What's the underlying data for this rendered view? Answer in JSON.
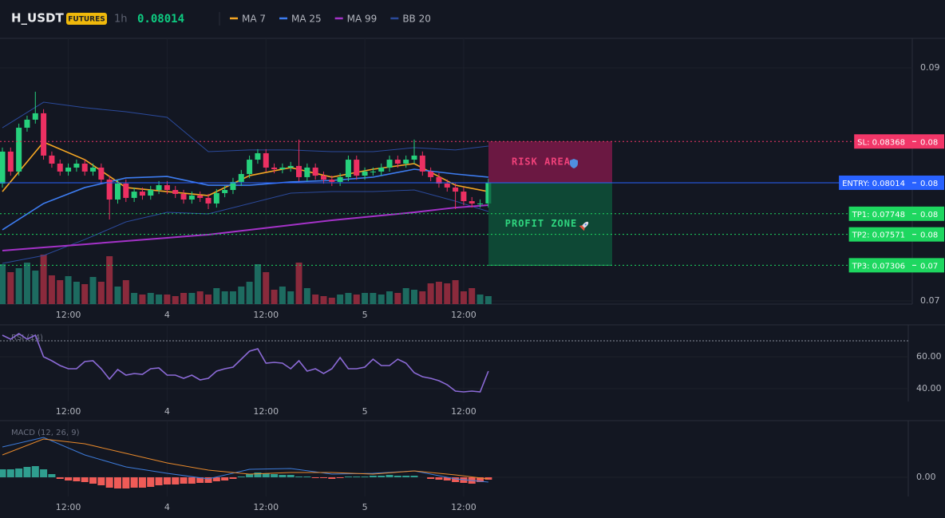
{
  "chart_data": [
    {
      "type": "candlestick",
      "title": "H_USDT",
      "badge": "FUTURES",
      "interval": "1h",
      "last_price": 0.08014,
      "last_price_color": "#0ecb81",
      "categories": [
        null,
        null,
        null,
        null,
        null,
        null,
        null,
        null,
        "12:00",
        null,
        null,
        null,
        null,
        null,
        null,
        null,
        null,
        null,
        null,
        null,
        "4",
        null,
        null,
        null,
        null,
        null,
        null,
        null,
        null,
        null,
        null,
        null,
        "12:00",
        null,
        null,
        null,
        null,
        null,
        null,
        null,
        null,
        null,
        null,
        null,
        "5",
        null,
        null,
        null,
        null,
        null,
        null,
        null,
        null,
        null,
        null,
        null,
        "12:00",
        null,
        null,
        null
      ],
      "up_color": "#26d07c",
      "down_color": "#ec3062",
      "volume_up_color": "#1d6b60",
      "volume_down_color": "#8a2a3c",
      "ohlc": [
        [
          0.08007,
          0.08316,
          0.07972,
          0.08281
        ],
        [
          0.08281,
          0.08316,
          0.08075,
          0.0811
        ],
        [
          0.0811,
          0.08521,
          0.08075,
          0.08486
        ],
        [
          0.08486,
          0.08589,
          0.08452,
          0.08555
        ],
        [
          0.08555,
          0.08795,
          0.08521,
          0.0861
        ],
        [
          0.0861,
          0.08645,
          0.08212,
          0.08247
        ],
        [
          0.08247,
          0.08282,
          0.08143,
          0.08178
        ],
        [
          0.08178,
          0.08213,
          0.08075,
          0.0811
        ],
        [
          0.0811,
          0.08179,
          0.08075,
          0.08144
        ],
        [
          0.08144,
          0.08213,
          0.08109,
          0.08178
        ],
        [
          0.08178,
          0.08213,
          0.08075,
          0.0811
        ],
        [
          0.0811,
          0.08179,
          0.08075,
          0.08144
        ],
        [
          0.08144,
          0.08179,
          0.08006,
          0.08041
        ],
        [
          0.08041,
          0.08076,
          0.07699,
          0.0787
        ],
        [
          0.0787,
          0.08042,
          0.07835,
          0.08007
        ],
        [
          0.08007,
          0.08042,
          0.07849,
          0.07884
        ],
        [
          0.07884,
          0.07973,
          0.07849,
          0.07938
        ],
        [
          0.07938,
          0.07973,
          0.07869,
          0.07904
        ],
        [
          0.07904,
          0.07987,
          0.07869,
          0.07952
        ],
        [
          0.07952,
          0.08028,
          0.07917,
          0.07993
        ],
        [
          0.07993,
          0.08028,
          0.07917,
          0.07952
        ],
        [
          0.07952,
          0.07987,
          0.07883,
          0.07918
        ],
        [
          0.07918,
          0.07953,
          0.07835,
          0.0787
        ],
        [
          0.0787,
          0.07939,
          0.07835,
          0.07904
        ],
        [
          0.07904,
          0.07939,
          0.07849,
          0.07884
        ],
        [
          0.07884,
          0.07919,
          0.07788,
          0.07836
        ],
        [
          0.07836,
          0.0796,
          0.07801,
          0.07925
        ],
        [
          0.07925,
          0.07987,
          0.0789,
          0.07952
        ],
        [
          0.07952,
          0.08056,
          0.07917,
          0.08021
        ],
        [
          0.08021,
          0.08124,
          0.07986,
          0.08089
        ],
        [
          0.08089,
          0.08247,
          0.08054,
          0.08212
        ],
        [
          0.08212,
          0.08302,
          0.08177,
          0.08267
        ],
        [
          0.08267,
          0.08302,
          0.08109,
          0.08144
        ],
        [
          0.08144,
          0.08179,
          0.08095,
          0.0813
        ],
        [
          0.0813,
          0.08179,
          0.08095,
          0.08144
        ],
        [
          0.08144,
          0.08193,
          0.08109,
          0.08158
        ],
        [
          0.08158,
          0.08384,
          0.08027,
          0.08062
        ],
        [
          0.08062,
          0.08179,
          0.08027,
          0.08144
        ],
        [
          0.08144,
          0.08179,
          0.0804,
          0.08075
        ],
        [
          0.08075,
          0.0811,
          0.08006,
          0.08041
        ],
        [
          0.08041,
          0.08076,
          0.07986,
          0.08021
        ],
        [
          0.08021,
          0.08097,
          0.07986,
          0.08062
        ],
        [
          0.08062,
          0.08247,
          0.08027,
          0.08212
        ],
        [
          0.08212,
          0.08247,
          0.0804,
          0.08075
        ],
        [
          0.08075,
          0.08145,
          0.0804,
          0.0811
        ],
        [
          0.0811,
          0.08145,
          0.08075,
          0.0811
        ],
        [
          0.0811,
          0.08179,
          0.08075,
          0.08144
        ],
        [
          0.08144,
          0.08247,
          0.08109,
          0.08212
        ],
        [
          0.08212,
          0.08247,
          0.08143,
          0.08178
        ],
        [
          0.08178,
          0.08247,
          0.08143,
          0.08212
        ],
        [
          0.08212,
          0.08384,
          0.08177,
          0.08247
        ],
        [
          0.08247,
          0.08282,
          0.08075,
          0.0811
        ],
        [
          0.0811,
          0.08145,
          0.08027,
          0.08062
        ],
        [
          0.08062,
          0.08097,
          0.07972,
          0.08007
        ],
        [
          0.08007,
          0.08042,
          0.07938,
          0.07973
        ],
        [
          0.07973,
          0.08008,
          0.07788,
          0.07938
        ],
        [
          0.07938,
          0.07973,
          0.07821,
          0.07856
        ],
        [
          0.07856,
          0.07891,
          0.07801,
          0.07836
        ],
        [
          0.07836,
          0.07871,
          0.07801,
          0.07836
        ],
        [
          0.07836,
          0.08049,
          0.07801,
          0.08014
        ]
      ],
      "volume": [
        50,
        40,
        45,
        52,
        42,
        62,
        36,
        30,
        35,
        28,
        25,
        34,
        28,
        60,
        22,
        30,
        14,
        12,
        14,
        12,
        12,
        10,
        14,
        14,
        16,
        12,
        20,
        16,
        16,
        22,
        28,
        50,
        40,
        18,
        22,
        16,
        52,
        20,
        12,
        10,
        8,
        12,
        14,
        12,
        14,
        14,
        12,
        16,
        14,
        20,
        18,
        16,
        26,
        28,
        26,
        30,
        16,
        20,
        12,
        10
      ],
      "x": [
        0,
        5,
        10,
        15,
        20,
        25,
        30,
        35,
        40,
        45,
        50,
        55,
        59
      ],
      "series": [
        {
          "name": "MA 7",
          "color": "#f5a623",
          "values": [
            0.07938,
            0.08363,
            0.08212,
            0.07973,
            0.07938,
            0.07904,
            0.08075,
            0.08144,
            0.08062,
            0.0813,
            0.08178,
            0.07993,
            0.07938
          ]
        },
        {
          "name": "MA 25",
          "color": "#3d7cf0",
          "values": [
            0.0761,
            0.07836,
            0.07973,
            0.08055,
            0.08068,
            0.07993,
            0.07993,
            0.08021,
            0.08034,
            0.08062,
            0.0813,
            0.08089,
            0.08062
          ]
        },
        {
          "name": "MA 99",
          "color": "#a432c8",
          "values": [
            0.07432,
            0.07459,
            0.07486,
            0.07514,
            0.07541,
            0.07569,
            0.0761,
            0.07651,
            0.07692,
            0.07726,
            0.0776,
            0.07801,
            0.07822
          ]
        }
      ],
      "bb": {
        "name": "BB 20",
        "color": "#2b4a9b",
        "upper": [
          0.08486,
          0.08705,
          0.08658,
          0.08623,
          0.08575,
          0.08281,
          0.08295,
          0.08295,
          0.08281,
          0.08281,
          0.08315,
          0.08295,
          0.08329
        ],
        "lower": [
          0.07322,
          0.0739,
          0.07527,
          0.07678,
          0.0776,
          0.07747,
          0.07836,
          0.07925,
          0.07938,
          0.07938,
          0.07952,
          0.07856,
          0.07767
        ]
      },
      "ylim": [
        0.06973,
        0.09253
      ],
      "yticks": [
        0.09,
        0.07
      ],
      "price_lines": [
        {
          "label": "SL: 0.08368",
          "value": 0.08368,
          "price_label": "0.08",
          "color": "#f23668",
          "style": "dotted"
        },
        {
          "label": "ENTRY: 0.08014",
          "value": 0.08014,
          "price_label": "0.08",
          "color": "#2962ff",
          "style": "solid"
        },
        {
          "label": "TP1: 0.07748",
          "value": 0.07748,
          "price_label": "0.08",
          "color": "#1ed760",
          "style": "dotted"
        },
        {
          "label": "TP2: 0.07571",
          "value": 0.07571,
          "price_label": "0.08",
          "color": "#1ed760",
          "style": "dotted"
        },
        {
          "label": "TP3: 0.07306",
          "value": 0.07306,
          "price_label": "0.07",
          "color": "#1ed760",
          "style": "dotted"
        }
      ],
      "zones": [
        {
          "label": "RISK AREA",
          "from": 0.08368,
          "to": 0.08014,
          "color": "#8a1a4e",
          "text_color": "#f0417a"
        },
        {
          "label": "PROFIT ZONE",
          "from": 0.08014,
          "to": 0.07306,
          "color": "#0d5a3c",
          "text_color": "#2fd67f"
        }
      ]
    },
    {
      "type": "line",
      "title": "RSI (14)",
      "color": "#8b6ad6",
      "values": [
        73.5,
        71,
        74.5,
        71,
        73.5,
        60,
        57.5,
        54.5,
        52.5,
        52.5,
        57,
        57.5,
        52.5,
        46,
        52,
        48.5,
        49.5,
        49,
        52.5,
        53,
        48.5,
        48.5,
        46.5,
        48.5,
        45.5,
        46.5,
        51,
        52.5,
        53.5,
        58.5,
        63.5,
        65,
        56,
        56.5,
        56,
        52.5,
        57.5,
        51,
        52.5,
        49.5,
        52.5,
        59.5,
        52.5,
        52.5,
        53.5,
        58.5,
        54.5,
        54.5,
        58.5,
        56,
        50,
        47.5,
        46.5,
        45,
        42.5,
        38.5,
        38,
        38.5,
        38,
        51
      ],
      "levels": [
        70
      ],
      "ylim": [
        32,
        79.5
      ],
      "yticks": [
        {
          "value": 60,
          "label": "60.00"
        },
        {
          "value": 40,
          "label": "40.00"
        }
      ]
    },
    {
      "type": "macd",
      "title": "MACD (12, 26, 9)",
      "up_color": "#2f9e8f",
      "down_color": "#ef5b57",
      "histogram": [
        0.0002,
        0.0002,
        0.00022,
        0.00026,
        0.00028,
        0.0002,
        8e-05,
        -4e-05,
        -8e-05,
        -0.0001,
        -0.00012,
        -0.00016,
        -0.0002,
        -0.00026,
        -0.00028,
        -0.00028,
        -0.00026,
        -0.00026,
        -0.00024,
        -0.0002,
        -0.00018,
        -0.00018,
        -0.00016,
        -0.00016,
        -0.00014,
        -0.00014,
        -0.0001,
        -8e-05,
        -4e-05,
        2e-05,
        8e-05,
        0.00012,
        0.0001,
        8e-05,
        6e-05,
        6e-05,
        2e-05,
        2e-05,
        -2e-05,
        -2e-05,
        -4e-05,
        -2e-05,
        2e-05,
        2e-05,
        2e-05,
        4e-05,
        4e-05,
        6e-05,
        4e-05,
        4e-05,
        4e-05,
        0,
        -4e-05,
        -6e-05,
        -8e-05,
        -0.00012,
        -0.00014,
        -0.00016,
        -0.00012,
        -6e-05
      ],
      "x": [
        0,
        5,
        10,
        15,
        20,
        25,
        30,
        35,
        40,
        45,
        50,
        55,
        59
      ],
      "macd": {
        "color": "#3d7bd9",
        "values": [
          0.00076,
          0.001,
          0.00056,
          0.00026,
          0.0001,
          -4e-05,
          0.0002,
          0.00022,
          8e-05,
          0.0001,
          0.00016,
          -4e-05,
          -0.00012
        ]
      },
      "signal": {
        "color": "#e8892b",
        "values": [
          0.00056,
          0.00096,
          0.00084,
          0.0006,
          0.00036,
          0.00018,
          8e-05,
          0.00012,
          0.00012,
          8e-05,
          0.00016,
          6e-05,
          -4e-05
        ]
      },
      "ylim": [
        -0.00048,
        0.0014
      ],
      "yticks": [
        {
          "value": 0,
          "label": "0.00"
        }
      ]
    }
  ]
}
